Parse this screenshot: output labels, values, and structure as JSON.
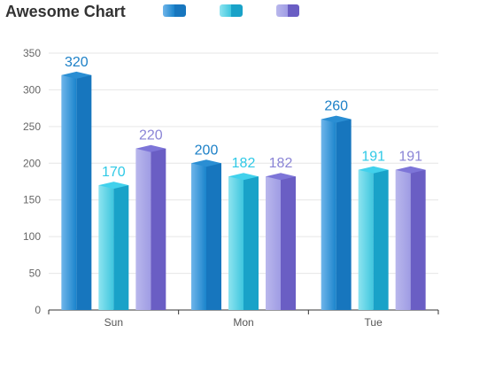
{
  "colors": {
    "series": [
      {
        "front": "#6fb5ea",
        "front_dark": "#1a84cc",
        "side": "#1776be",
        "top": "#2a8ed3",
        "label": "#1c80c7"
      },
      {
        "front": "#8ee4f0",
        "front_dark": "#3ec6de",
        "side": "#19a2c8",
        "top": "#41d1ec",
        "label": "#2fc9e6"
      },
      {
        "front": "#b9b7ec",
        "front_dark": "#9f9ce4",
        "side": "#6a5ec4",
        "top": "#7d75d8",
        "label": "#8a84d6"
      }
    ],
    "grid": "#e6e6e6",
    "axis": "#333333"
  },
  "chart_data": {
    "type": "bar",
    "title": "Awesome Chart",
    "categories": [
      "Sun",
      "Mon",
      "Tue"
    ],
    "series": [
      {
        "values": [
          320,
          200,
          260
        ]
      },
      {
        "values": [
          170,
          182,
          191
        ]
      },
      {
        "values": [
          220,
          182,
          191
        ]
      }
    ],
    "ylim": [
      0,
      350
    ],
    "yticks": [
      0,
      50,
      100,
      150,
      200,
      250,
      300,
      350
    ],
    "xlabel": "",
    "ylabel": "",
    "grid": true,
    "legend": "top",
    "style": "3d-bars"
  }
}
